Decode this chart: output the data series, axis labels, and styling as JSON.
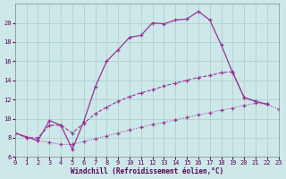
{
  "xlabel": "Windchill (Refroidissement éolien,°C)",
  "bg_color": "#cce8e8",
  "line_color": "#993399",
  "grid_color": "#aacccc",
  "xlim": [
    0,
    23
  ],
  "ylim": [
    6,
    22
  ],
  "yticks": [
    6,
    8,
    10,
    12,
    14,
    16,
    18,
    20
  ],
  "xticks": [
    0,
    1,
    2,
    3,
    4,
    5,
    6,
    7,
    8,
    9,
    10,
    11,
    12,
    13,
    14,
    15,
    16,
    17,
    18,
    19,
    20,
    21,
    22,
    23
  ],
  "line_solid_x": [
    2,
    3,
    4,
    5,
    6,
    7,
    8,
    9,
    10,
    11,
    12,
    13,
    14,
    15,
    16,
    17,
    18,
    19,
    20,
    21,
    22
  ],
  "line_solid_y": [
    7.7,
    9.8,
    9.3,
    6.8,
    9.7,
    13.3,
    16.0,
    17.2,
    18.5,
    18.7,
    20.0,
    19.9,
    20.3,
    20.4,
    21.2,
    20.3,
    17.7,
    14.8,
    12.2,
    11.8,
    11.5
  ],
  "line_dashed_x": [
    0,
    1,
    2,
    3,
    4,
    5,
    6,
    7,
    8,
    9,
    10,
    11,
    12,
    13,
    14,
    15,
    16,
    17,
    18,
    19,
    20,
    21,
    22
  ],
  "line_dashed_y": [
    8.5,
    8.0,
    8.0,
    9.3,
    9.3,
    8.5,
    9.5,
    10.5,
    11.2,
    11.8,
    12.3,
    12.7,
    13.0,
    13.4,
    13.7,
    14.0,
    14.3,
    14.5,
    14.8,
    14.9,
    12.2,
    11.8,
    11.5
  ],
  "line_dotted_x": [
    0,
    1,
    2,
    3,
    4,
    5,
    6,
    7,
    8,
    9,
    10,
    11,
    12,
    13,
    14,
    15,
    16,
    17,
    18,
    19,
    20,
    21,
    22,
    23
  ],
  "line_dotted_y": [
    8.5,
    8.0,
    7.7,
    7.5,
    7.3,
    7.3,
    7.6,
    7.9,
    8.2,
    8.5,
    8.8,
    9.1,
    9.4,
    9.6,
    9.9,
    10.1,
    10.4,
    10.6,
    10.9,
    11.1,
    11.4,
    11.6,
    11.5,
    11.0
  ]
}
